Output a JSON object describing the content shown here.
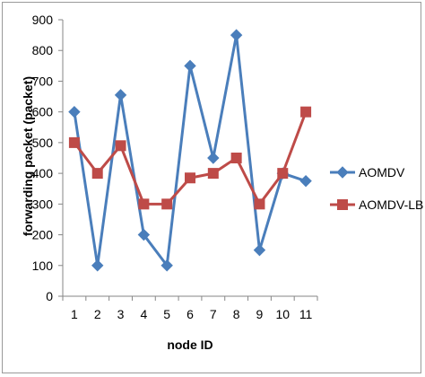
{
  "chart_data": {
    "type": "line",
    "title": "",
    "xlabel": "node ID",
    "ylabel": "forwarding packet (packet)",
    "categories": [
      "1",
      "2",
      "3",
      "4",
      "5",
      "6",
      "7",
      "8",
      "9",
      "10",
      "11"
    ],
    "ylim": [
      0,
      900
    ],
    "yticks": [
      0,
      100,
      200,
      300,
      400,
      500,
      600,
      700,
      800,
      900
    ],
    "grid": false,
    "legend": "right",
    "series": [
      {
        "name": "AOMDV",
        "color": "#4a7ebb",
        "marker": "diamond",
        "values": [
          600,
          100,
          655,
          200,
          100,
          750,
          450,
          850,
          150,
          400,
          375
        ]
      },
      {
        "name": "AOMDV-LB",
        "color": "#be4b48",
        "marker": "square",
        "values": [
          500,
          400,
          490,
          300,
          300,
          385,
          400,
          450,
          300,
          400,
          600
        ]
      }
    ]
  }
}
